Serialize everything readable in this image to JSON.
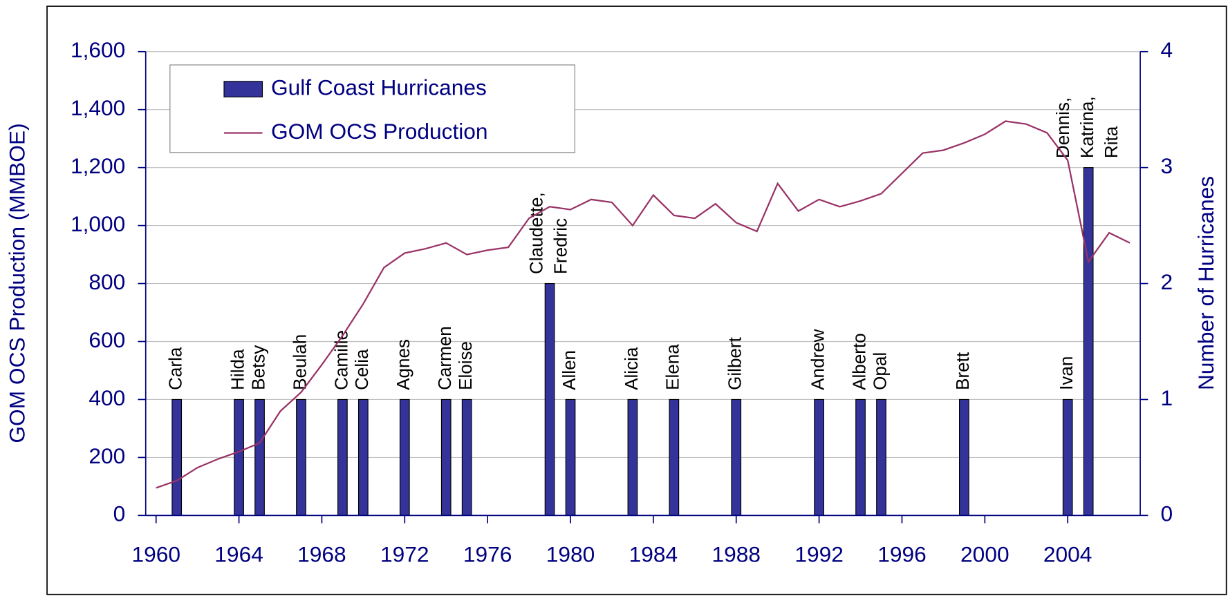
{
  "chart_data": {
    "type": "bar",
    "x": [
      1960,
      1961,
      1962,
      1963,
      1964,
      1965,
      1966,
      1967,
      1968,
      1969,
      1970,
      1971,
      1972,
      1973,
      1974,
      1975,
      1976,
      1977,
      1978,
      1979,
      1980,
      1981,
      1982,
      1983,
      1984,
      1985,
      1986,
      1987,
      1988,
      1989,
      1990,
      1991,
      1992,
      1993,
      1994,
      1995,
      1996,
      1997,
      1998,
      1999,
      2000,
      2001,
      2002,
      2003,
      2004,
      2005,
      2006,
      2007
    ],
    "xlim": [
      1959.5,
      2007.5
    ],
    "xticks": [
      1960,
      1964,
      1968,
      1972,
      1976,
      1980,
      1984,
      1988,
      1992,
      1996,
      2000,
      2004
    ],
    "ylabel": "GOM OCS Production (MMBOE)",
    "y2label": "Number of Hurricanes",
    "ylim": [
      0,
      1600
    ],
    "yticks": [
      0,
      200,
      400,
      600,
      800,
      {
        "value": 1000,
        "label": "1,000"
      },
      {
        "value": 1200,
        "label": "1,200"
      },
      {
        "value": 1400,
        "label": "1,400"
      },
      {
        "value": 1600,
        "label": "1,600"
      }
    ],
    "y2lim": [
      0,
      4
    ],
    "y2ticks": [
      0,
      1,
      2,
      3,
      4
    ],
    "grid": true,
    "legend": "top-left",
    "series": [
      {
        "name": "Gulf Coast Hurricanes",
        "type": "bar",
        "axis": "y2",
        "color": "#333399",
        "values": [
          0,
          1,
          0,
          0,
          1,
          1,
          0,
          1,
          0,
          1,
          1,
          0,
          1,
          0,
          1,
          1,
          0,
          0,
          0,
          2,
          1,
          0,
          0,
          1,
          0,
          1,
          0,
          0,
          1,
          0,
          0,
          0,
          1,
          0,
          1,
          1,
          0,
          0,
          0,
          1,
          0,
          0,
          0,
          0,
          1,
          3,
          0,
          0
        ],
        "bar_labels": [
          null,
          [
            "Carla"
          ],
          null,
          null,
          [
            "Hilda"
          ],
          [
            "Betsy"
          ],
          null,
          [
            "Beulah"
          ],
          null,
          [
            "Camille"
          ],
          [
            "Celia"
          ],
          null,
          [
            "Agnes"
          ],
          null,
          [
            "Carmen"
          ],
          [
            "Eloise"
          ],
          null,
          null,
          null,
          [
            "Claudette,",
            "Fredric"
          ],
          [
            "Allen"
          ],
          null,
          null,
          [
            "Alicia"
          ],
          null,
          [
            "Elena"
          ],
          null,
          null,
          [
            "Gilbert"
          ],
          null,
          null,
          null,
          [
            "Andrew"
          ],
          null,
          [
            "Alberto"
          ],
          [
            "Opal"
          ],
          null,
          null,
          null,
          [
            "Brett"
          ],
          null,
          null,
          null,
          null,
          [
            "Ivan"
          ],
          [
            "Dennis,",
            "Katrina,",
            "Rita"
          ],
          null,
          null
        ]
      },
      {
        "name": "GOM OCS Production",
        "type": "line",
        "color": "#993366",
        "values": [
          95,
          120,
          165,
          195,
          220,
          250,
          360,
          425,
          520,
          620,
          730,
          855,
          905,
          920,
          940,
          900,
          915,
          925,
          1025,
          1065,
          1055,
          1090,
          1080,
          1000,
          1105,
          1035,
          1025,
          1075,
          1010,
          980,
          1145,
          1050,
          1090,
          1065,
          1085,
          1110,
          1180,
          1250,
          1260,
          1285,
          1315,
          1360,
          1350,
          1320,
          1225,
          875,
          975,
          940
        ]
      }
    ]
  }
}
